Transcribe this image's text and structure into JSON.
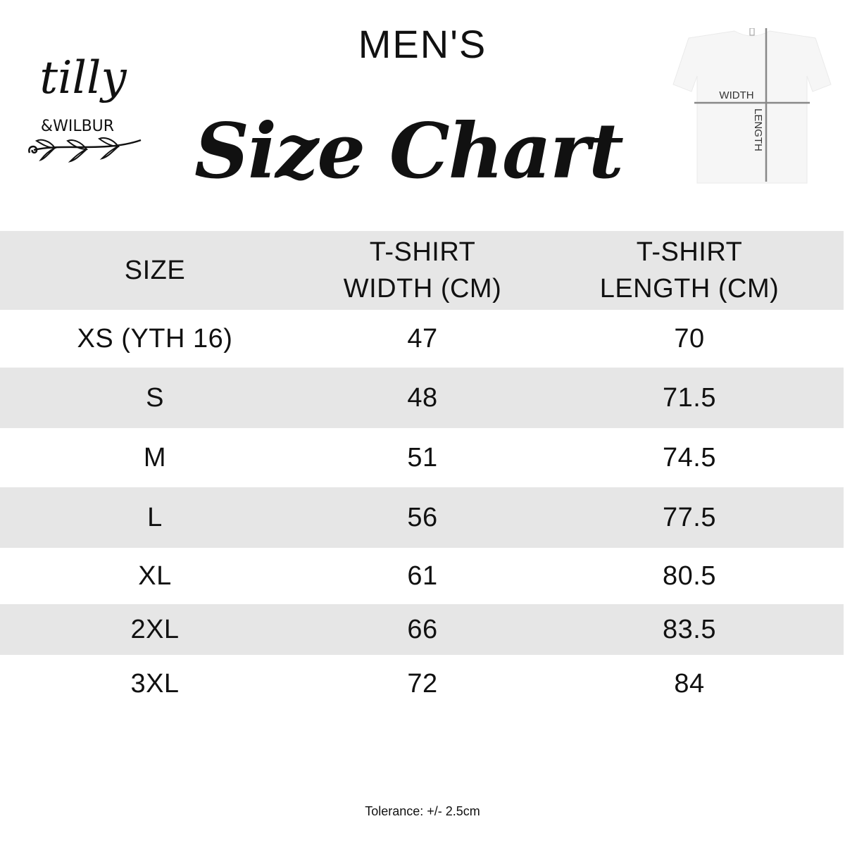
{
  "header": {
    "title": "MEN'S",
    "subtitle": "Size Chart",
    "logo_text": "tilly & WILBUR",
    "diagram_labels": {
      "width": "WIDTH",
      "length": "LENGTH"
    }
  },
  "table": {
    "columns": [
      "SIZE",
      "T-SHIRT WIDTH (CM)",
      "T-SHIRT LENGTH (CM)"
    ],
    "column_lines": [
      [
        "SIZE"
      ],
      [
        "T-SHIRT",
        "WIDTH (CM)"
      ],
      [
        "T-SHIRT",
        "LENGTH (CM)"
      ]
    ],
    "rows": [
      [
        "XS (YTH 16)",
        "47",
        "70"
      ],
      [
        "S",
        "48",
        "71.5"
      ],
      [
        "M",
        "51",
        "74.5"
      ],
      [
        "L",
        "56",
        "77.5"
      ],
      [
        "XL",
        "61",
        "80.5"
      ],
      [
        "2XL",
        "66",
        "83.5"
      ],
      [
        "3XL",
        "72",
        "84"
      ]
    ]
  },
  "footer": {
    "tolerance": "Tolerance: +/- 2.5cm"
  },
  "colors": {
    "band": "#e6e6e6",
    "text": "#111111"
  }
}
